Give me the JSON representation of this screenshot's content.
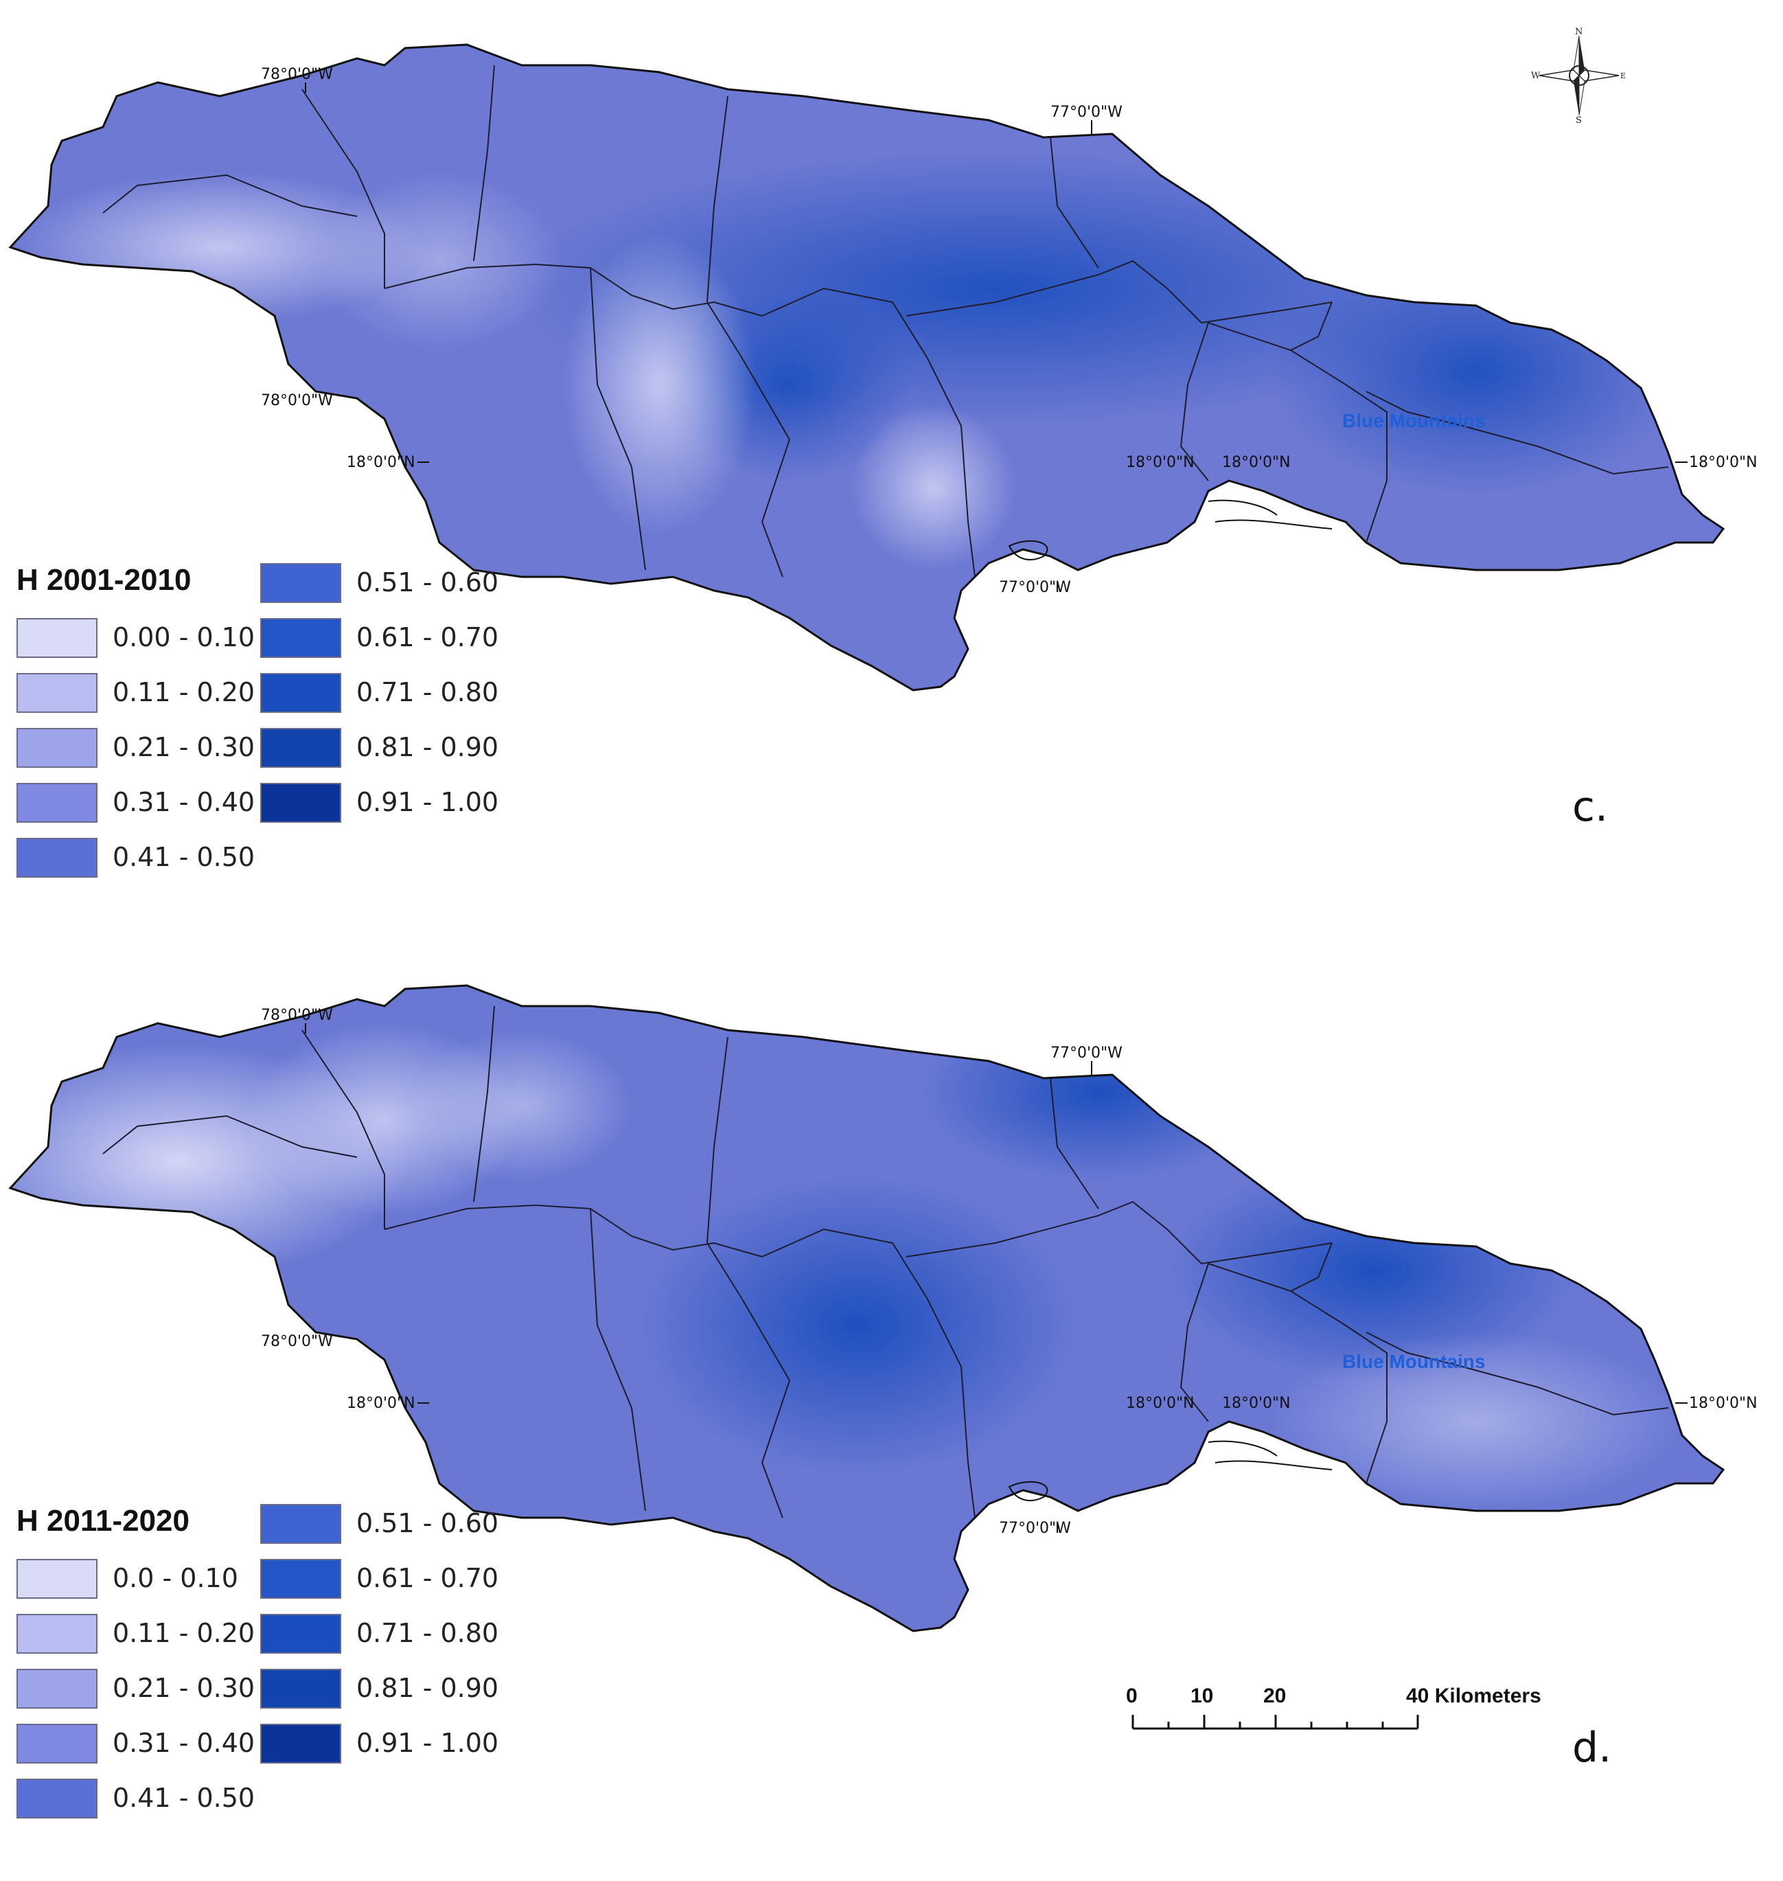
{
  "compass": {
    "n": "N",
    "s": "S",
    "e": "E",
    "w": "W"
  },
  "grid_labels": {
    "lon_78": "78°0'0\"W",
    "lon_77": "77°0'0\"W",
    "lat_18": "18°0'0\"N"
  },
  "place_label": "Blue Mountains",
  "legend_labels": {
    "title_c": "H 2001-2010",
    "title_d": "H 2011-2020",
    "c": [
      "0.00 - 0.10",
      "0.11 - 0.20",
      "0.21 - 0.30",
      "0.31 - 0.40",
      "0.41 - 0.50",
      "0.51 - 0.60",
      "0.61 - 0.70",
      "0.71 - 0.80",
      "0.81 - 0.90",
      "0.91 - 1.00"
    ],
    "d": [
      "0.0 - 0.10",
      "0.11 - 0.20",
      "0.21 - 0.30",
      "0.31 - 0.40",
      "0.41 - 0.50",
      "0.51 - 0.60",
      "0.61 - 0.70",
      "0.71 - 0.80",
      "0.81 - 0.90",
      "0.91 - 1.00"
    ]
  },
  "legend_colors": [
    "#dadcf7",
    "#b9bcf0",
    "#9ea4ea",
    "#8089e2",
    "#5a70d6",
    "#3f63d0",
    "#2556c8",
    "#1a4dbd",
    "#1344ad",
    "#0b3399"
  ],
  "panels": {
    "c": "c.",
    "d": "d."
  },
  "scale": {
    "ticks": [
      "0",
      "10",
      "20"
    ],
    "end_label": "40 Kilometers"
  }
}
